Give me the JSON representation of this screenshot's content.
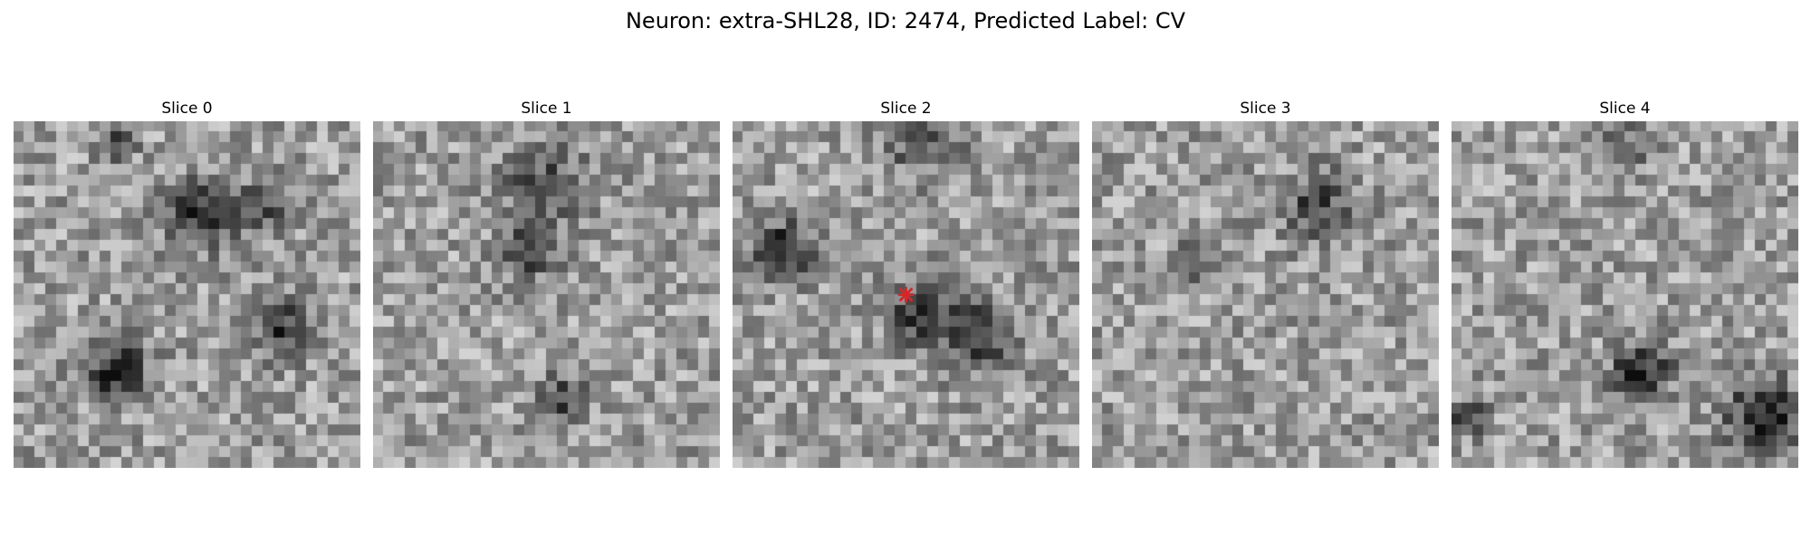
{
  "figure": {
    "title": "Neuron: extra-SHL28, ID: 2474, Predicted Label: CV"
  },
  "panels": [
    {
      "title": "Slice 0"
    },
    {
      "title": "Slice 1"
    },
    {
      "title": "Slice 2"
    },
    {
      "title": "Slice 3"
    },
    {
      "title": "Slice 4"
    }
  ],
  "colors": {
    "background": "#ffffff",
    "marker": "#d62728"
  },
  "image": {
    "colormap": "grayscale",
    "grid_cells": 32
  },
  "marker": {
    "shape": "x",
    "panel": "Slice 2",
    "position": "center"
  }
}
